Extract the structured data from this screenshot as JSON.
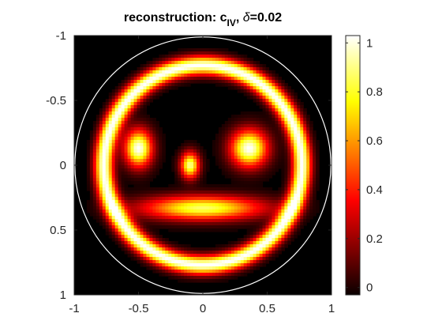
{
  "title": {
    "prefix": "reconstruction: c",
    "subscript": "IV",
    "middle": ", ",
    "symbol": "δ",
    "suffix": "=0.02"
  },
  "chart_data": {
    "type": "heatmap",
    "colormap": "hot",
    "xlim": [
      -1,
      1
    ],
    "ylim": [
      -1,
      1
    ],
    "y_direction": "reverse",
    "x_ticks": [
      -1,
      -0.5,
      0,
      0.5,
      1
    ],
    "x_tick_labels": [
      "-1",
      "-0.5",
      "0",
      "0.5",
      "1"
    ],
    "y_ticks": [
      -1,
      -0.5,
      0,
      0.5,
      1
    ],
    "y_tick_labels": [
      "-1",
      "-0.5",
      "0",
      "0.5",
      "1"
    ],
    "colorbar": {
      "limits": [
        -0.03,
        1.03
      ],
      "ticks": [
        0,
        0.2,
        0.4,
        0.6,
        0.8,
        1
      ],
      "tick_labels": [
        "0",
        "0.2",
        "0.4",
        "0.6",
        "0.8",
        "1"
      ]
    },
    "domain_circle": {
      "center": [
        0,
        0
      ],
      "radius": 1,
      "color": "#ffffff"
    },
    "features": [
      {
        "name": "ring",
        "center": [
          0,
          0
        ],
        "radius": 0.77,
        "width": 0.05,
        "peak": 1.0
      },
      {
        "name": "left-eye",
        "center": [
          -0.5,
          -0.13
        ],
        "sx": 0.075,
        "sy": 0.1,
        "peak": 1.0
      },
      {
        "name": "right-eye",
        "center": [
          0.36,
          -0.13
        ],
        "sx": 0.1,
        "sy": 0.1,
        "peak": 1.0
      },
      {
        "name": "nose",
        "center": [
          -0.1,
          0.0
        ],
        "sx": 0.05,
        "sy": 0.07,
        "peak": 0.9
      },
      {
        "name": "mouth",
        "center": [
          0.0,
          0.33
        ],
        "sx": 0.33,
        "sy": 0.065,
        "peak": 0.85
      }
    ]
  }
}
